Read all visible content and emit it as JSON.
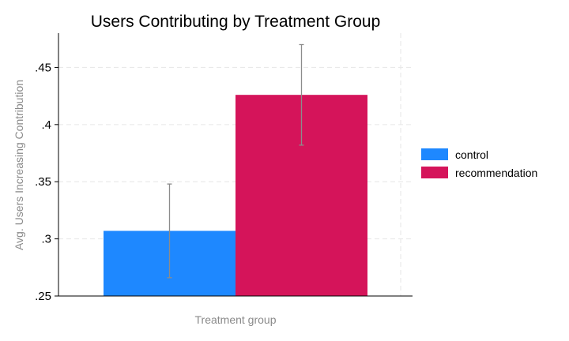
{
  "chart_data": {
    "type": "bar",
    "title": "Users Contributing by Treatment Group",
    "xlabel": "Treatment group",
    "ylabel": "Avg. Users Increasing Contribution",
    "ylim": [
      0.25,
      0.48
    ],
    "yticks": [
      {
        "value": 0.25,
        "label": ".25"
      },
      {
        "value": 0.3,
        "label": ".3"
      },
      {
        "value": 0.35,
        "label": ".35"
      },
      {
        "value": 0.4,
        "label": ".4"
      },
      {
        "value": 0.45,
        "label": ".45"
      }
    ],
    "grid": true,
    "legend_position": "right",
    "series": [
      {
        "name": "control",
        "value": 0.307,
        "ci_low": 0.266,
        "ci_high": 0.348,
        "color": "#1e88ff"
      },
      {
        "name": "recommendation",
        "value": 0.426,
        "ci_low": 0.382,
        "ci_high": 0.47,
        "color": "#d5145a"
      }
    ],
    "errorbar_color": "#8c8c8c"
  }
}
